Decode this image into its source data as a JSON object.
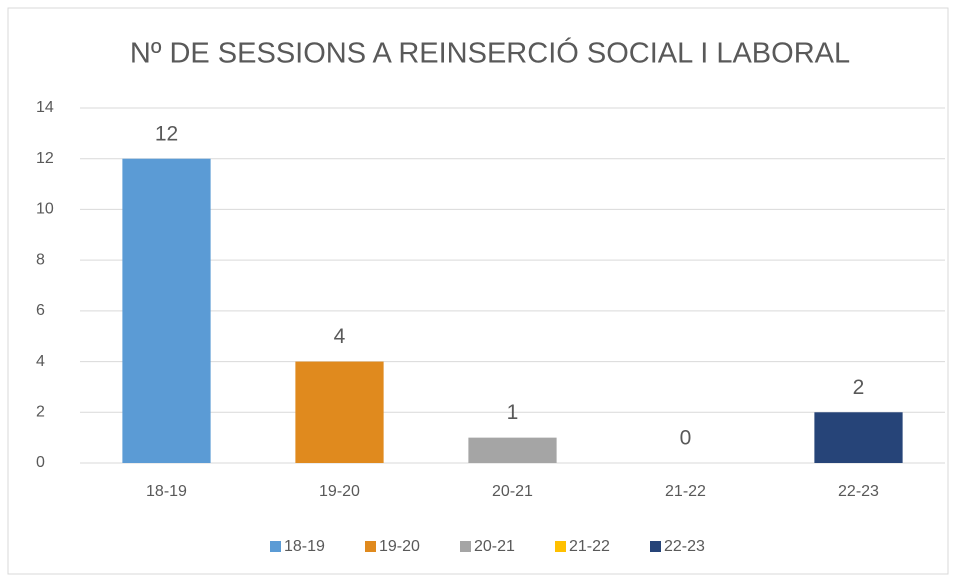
{
  "chart_data": {
    "type": "bar",
    "title": "Nº DE SESSIONS A REINSERCIÓ SOCIAL I LABORAL",
    "categories": [
      "18-19",
      "19-20",
      "20-21",
      "21-22",
      "22-23"
    ],
    "values": [
      12,
      4,
      1,
      0,
      2
    ],
    "colors": [
      "#5b9bd5",
      "#e08a1e",
      "#a5a5a5",
      "#ffc000",
      "#264478"
    ],
    "ylim": [
      0,
      14
    ],
    "yticks": [
      0,
      2,
      4,
      6,
      8,
      10,
      12,
      14
    ],
    "grid": true,
    "legend": "bottom"
  }
}
